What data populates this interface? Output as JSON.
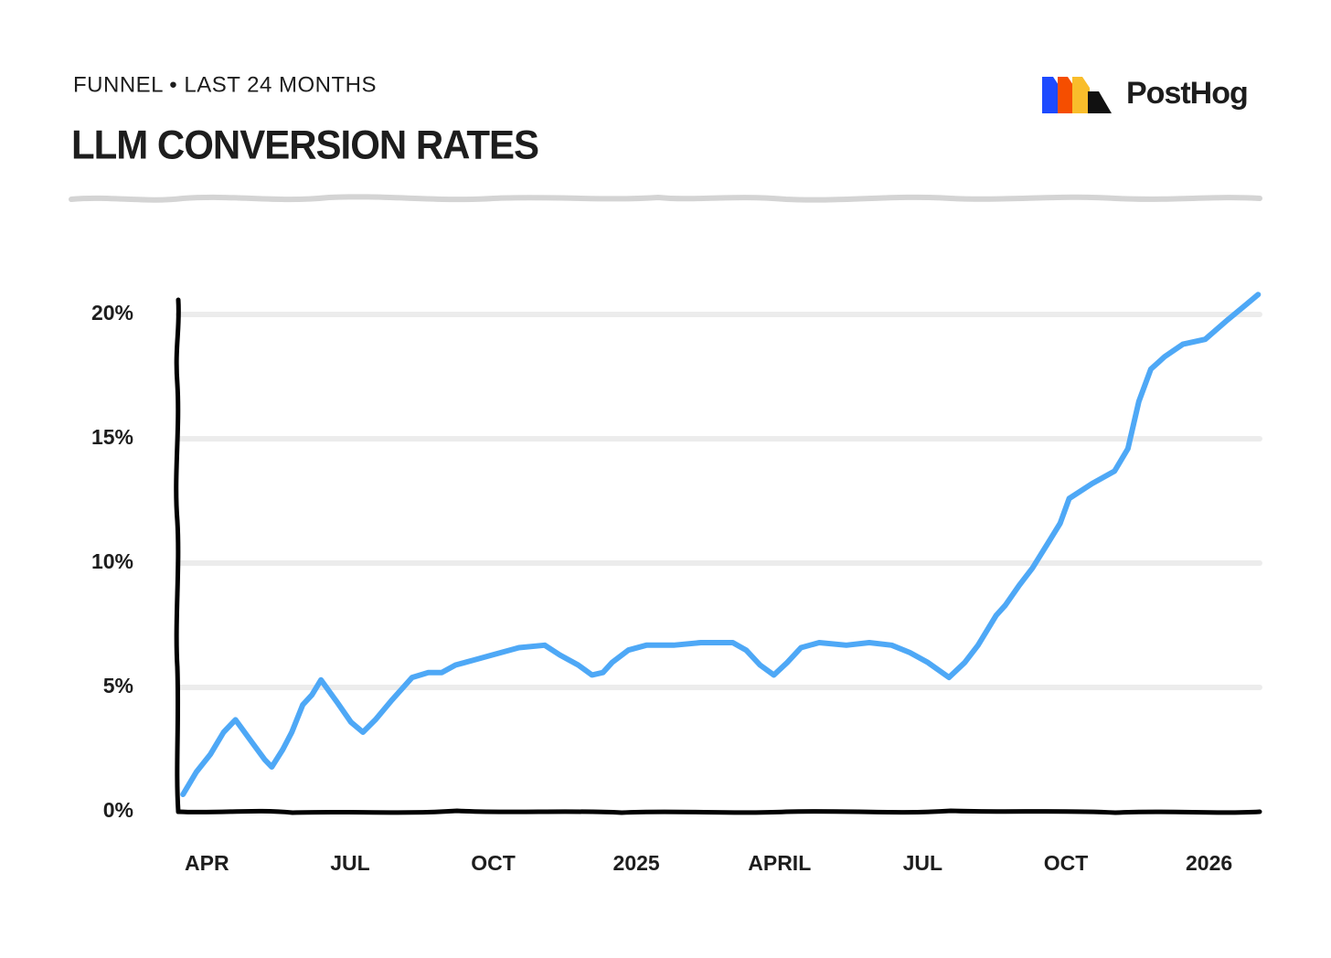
{
  "brand": "PostHog",
  "chart_data": {
    "type": "line",
    "subtitle": "FUNNEL • LAST 24 MONTHS",
    "title": "LLM CONVERSION RATES",
    "x": [
      2.5,
      2.78,
      3.07,
      3.35,
      3.6,
      3.98,
      4.21,
      4.36,
      4.59,
      4.78,
      5.01,
      5.2,
      5.39,
      5.73,
      6.02,
      6.27,
      6.53,
      6.88,
      7.3,
      7.64,
      7.92,
      8.21,
      8.59,
      8.97,
      9.54,
      10.08,
      10.4,
      10.78,
      11.07,
      11.3,
      11.49,
      11.83,
      12.21,
      12.78,
      13.35,
      13.73,
      14.02,
      14.3,
      14.59,
      14.88,
      15.16,
      15.45,
      15.83,
      16.4,
      16.88,
      17.35,
      17.73,
      18.11,
      18.55,
      18.88,
      19.16,
      19.54,
      19.73,
      20.02,
      20.3,
      20.59,
      20.88,
      21.07,
      21.55,
      22.02,
      22.3,
      22.53,
      22.78,
      23.07,
      23.45,
      23.92,
      24.4,
      24.78,
      25.03
    ],
    "series": [
      {
        "name": "LLM conversion rate",
        "color": "#4ea8f6",
        "values": [
          0.7,
          1.6,
          2.3,
          3.2,
          3.7,
          2.7,
          2.1,
          1.8,
          2.5,
          3.2,
          4.3,
          4.7,
          5.3,
          4.4,
          3.6,
          3.2,
          3.7,
          4.5,
          5.4,
          5.6,
          5.6,
          5.9,
          6.1,
          6.3,
          6.6,
          6.7,
          6.3,
          5.9,
          5.5,
          5.6,
          6.0,
          6.5,
          6.7,
          6.7,
          6.8,
          6.8,
          6.8,
          6.5,
          5.9,
          5.5,
          6.0,
          6.6,
          6.8,
          6.7,
          6.8,
          6.7,
          6.4,
          6.0,
          5.4,
          6.0,
          6.7,
          7.9,
          8.3,
          9.1,
          9.8,
          10.7,
          11.6,
          12.6,
          13.2,
          13.7,
          14.6,
          16.5,
          17.8,
          18.3,
          18.8,
          19.0,
          19.8,
          20.4,
          20.8
        ]
      }
    ],
    "xlim": [
      2.4,
      25.1
    ],
    "xticks": [
      {
        "value": 3,
        "label": "APR"
      },
      {
        "value": 6,
        "label": "JUL"
      },
      {
        "value": 9,
        "label": "OCT"
      },
      {
        "value": 12,
        "label": "2025"
      },
      {
        "value": 15,
        "label": "APRIL"
      },
      {
        "value": 18,
        "label": "JUL"
      },
      {
        "value": 21,
        "label": "OCT"
      },
      {
        "value": 24,
        "label": "2026"
      }
    ],
    "ylim": [
      0,
      21
    ],
    "yticks": [
      {
        "value": 0,
        "label": "0%"
      },
      {
        "value": 5,
        "label": "5%"
      },
      {
        "value": 10,
        "label": "10%"
      },
      {
        "value": 15,
        "label": "15%"
      },
      {
        "value": 20,
        "label": "20%"
      }
    ],
    "grid": true
  }
}
